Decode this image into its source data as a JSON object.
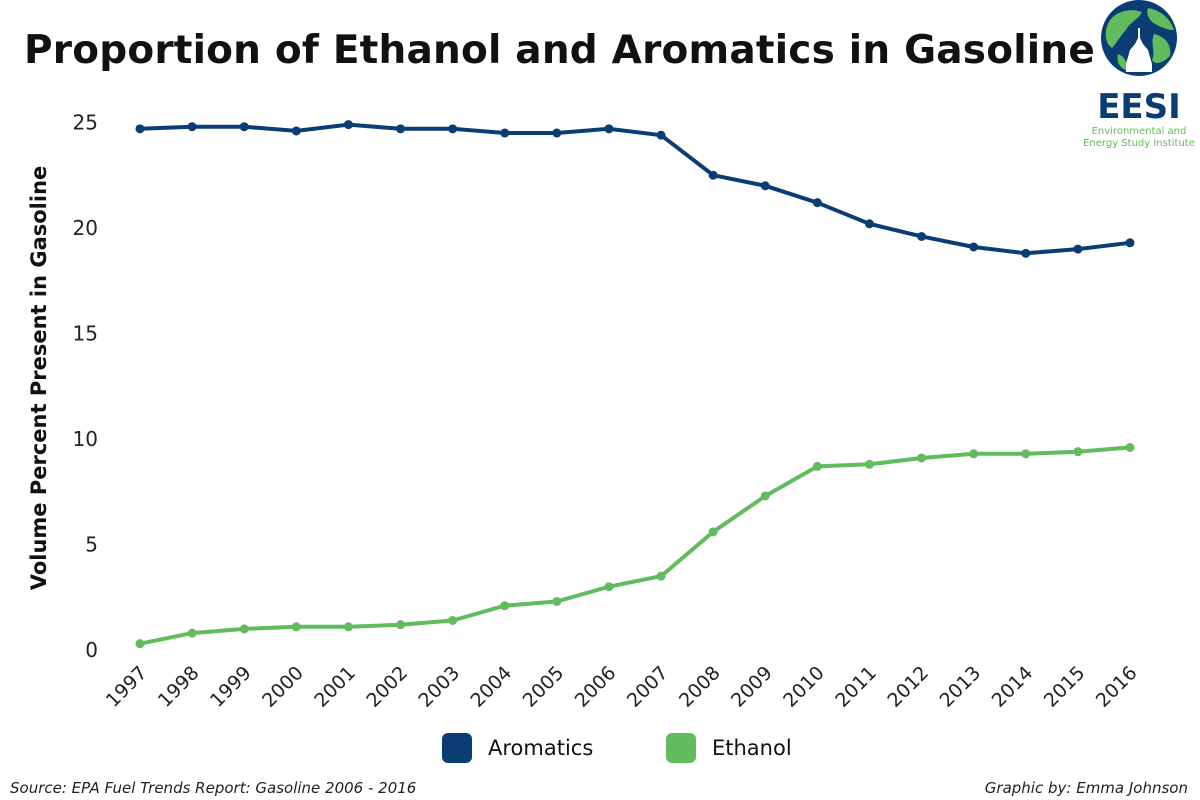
{
  "title": "Proportion of Ethanol and Aromatics in Gasoline",
  "logo": {
    "name": "EESI",
    "subtitle_line1": "Environmental and",
    "subtitle_line2": "Energy Study Institute",
    "colors": {
      "blue": "#0a3d73",
      "green": "#62bb5d"
    }
  },
  "source": "Source: EPA Fuel Trends Report: Gasoline 2006 - 2016",
  "credit": "Graphic by: Emma Johnson",
  "chart_data": {
    "type": "line",
    "title": "Proportion of Ethanol and Aromatics in Gasoline",
    "xlabel": "",
    "ylabel": "Volume Percent Present in Gasoline",
    "categories": [
      "1997",
      "1998",
      "1999",
      "2000",
      "2001",
      "2002",
      "2003",
      "2004",
      "2005",
      "2006",
      "2007",
      "2008",
      "2009",
      "2010",
      "2011",
      "2012",
      "2013",
      "2014",
      "2015",
      "2016"
    ],
    "yticks": [
      0,
      5,
      10,
      15,
      20,
      25
    ],
    "ylim": [
      0,
      26
    ],
    "grid": false,
    "legend_position": "bottom-center",
    "series": [
      {
        "name": "Aromatics",
        "color": "#0a3d73",
        "values": [
          24.7,
          24.8,
          24.8,
          24.6,
          24.9,
          24.7,
          24.7,
          24.5,
          24.5,
          24.7,
          24.4,
          22.5,
          22.0,
          21.2,
          20.2,
          19.6,
          19.1,
          18.8,
          19.0,
          19.3
        ]
      },
      {
        "name": "Ethanol",
        "color": "#62bb5d",
        "values": [
          0.3,
          0.8,
          1.0,
          1.1,
          1.1,
          1.2,
          1.4,
          2.1,
          2.3,
          3.0,
          3.5,
          5.6,
          7.3,
          8.7,
          8.8,
          9.1,
          9.3,
          9.3,
          9.4,
          9.6
        ]
      }
    ]
  }
}
